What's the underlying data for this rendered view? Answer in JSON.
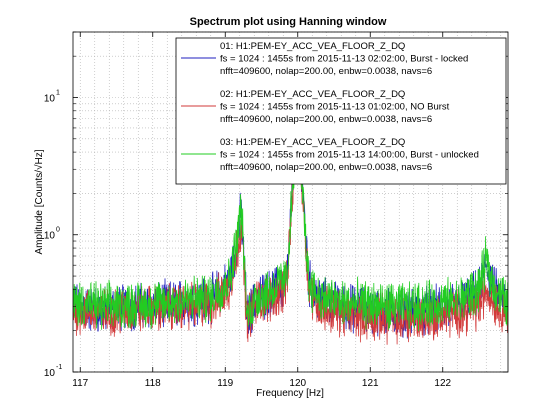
{
  "chart_data": {
    "type": "line",
    "title": "Spectrum plot using Hanning window",
    "xlabel": "Frequency [Hz]",
    "ylabel": "Amplitude [Counts/√Hz]",
    "xlim": [
      116.9,
      122.9
    ],
    "ylim": [
      0.1,
      30
    ],
    "yscale": "log",
    "grid": true,
    "legend_position": "top-right",
    "x_ticks": [
      117,
      118,
      119,
      120,
      121,
      122
    ],
    "x_tick_labels": [
      "117",
      "118",
      "119",
      "120",
      "121",
      "122"
    ],
    "y_ticks": [
      0.1,
      1,
      10
    ],
    "y_tick_base": "10",
    "y_tick_exponents": [
      "-1",
      "0",
      "1"
    ],
    "series": [
      {
        "name": "01: H1:PEM-EY_ACC_VEA_FLOOR_Z_DQ",
        "detail1": "fs = 1024 : 1455s from 2015-11-13 02:02:00,    Burst - locked",
        "detail2": "nfft=409600, nolap=200.00, enbw=0.0038, navs=6",
        "color": "#1f1fbf",
        "x": [
          116.95,
          117.3,
          117.7,
          118.0,
          118.4,
          118.8,
          119.05,
          119.15,
          119.22,
          119.3,
          119.45,
          119.65,
          119.85,
          119.93,
          120.0,
          120.06,
          120.15,
          120.3,
          120.6,
          121.0,
          121.4,
          121.8,
          122.2,
          122.5,
          122.6,
          122.7,
          122.88
        ],
        "y": [
          0.3,
          0.28,
          0.3,
          0.3,
          0.32,
          0.34,
          0.45,
          0.8,
          1.5,
          0.25,
          0.35,
          0.38,
          0.45,
          2.5,
          9.5,
          2.6,
          0.45,
          0.33,
          0.3,
          0.28,
          0.27,
          0.28,
          0.3,
          0.38,
          0.6,
          0.4,
          0.3
        ]
      },
      {
        "name": "02: H1:PEM-EY_ACC_VEA_FLOOR_Z_DQ",
        "detail1": "fs = 1024 : 1455s from 2015-11-13 01:02:00,    NO Burst",
        "detail2": "nfft=409600, nolap=200.00, enbw=0.0038, navs=6",
        "color": "#d23a3a",
        "x": [
          116.95,
          117.3,
          117.7,
          118.0,
          118.4,
          118.8,
          119.05,
          119.15,
          119.22,
          119.3,
          119.45,
          119.65,
          119.85,
          119.93,
          120.0,
          120.06,
          120.15,
          120.3,
          120.6,
          121.0,
          121.4,
          121.8,
          122.2,
          122.5,
          122.6,
          122.7,
          122.88
        ],
        "y": [
          0.28,
          0.27,
          0.28,
          0.29,
          0.3,
          0.31,
          0.4,
          0.7,
          1.2,
          0.24,
          0.33,
          0.35,
          0.42,
          2.1,
          7.8,
          2.2,
          0.42,
          0.3,
          0.27,
          0.25,
          0.24,
          0.25,
          0.27,
          0.3,
          0.4,
          0.33,
          0.28
        ]
      },
      {
        "name": "03: H1:PEM-EY_ACC_VEA_FLOOR_Z_DQ",
        "detail1": "fs = 1024 : 1455s from 2015-11-13 14:00:00,    Burst - unlocked",
        "detail2": "nfft=409600, nolap=200.00, enbw=0.0038, navs=6",
        "color": "#22cc22",
        "x": [
          116.95,
          117.3,
          117.7,
          118.0,
          118.4,
          118.8,
          119.05,
          119.15,
          119.22,
          119.3,
          119.45,
          119.65,
          119.85,
          119.93,
          120.0,
          120.06,
          120.15,
          120.3,
          120.6,
          121.0,
          121.4,
          121.8,
          122.2,
          122.5,
          122.6,
          122.7,
          122.88
        ],
        "y": [
          0.32,
          0.3,
          0.31,
          0.31,
          0.33,
          0.35,
          0.46,
          0.85,
          1.6,
          0.26,
          0.36,
          0.4,
          0.48,
          2.3,
          6.0,
          2.4,
          0.46,
          0.35,
          0.32,
          0.31,
          0.3,
          0.31,
          0.33,
          0.4,
          0.65,
          0.42,
          0.32
        ]
      }
    ]
  }
}
